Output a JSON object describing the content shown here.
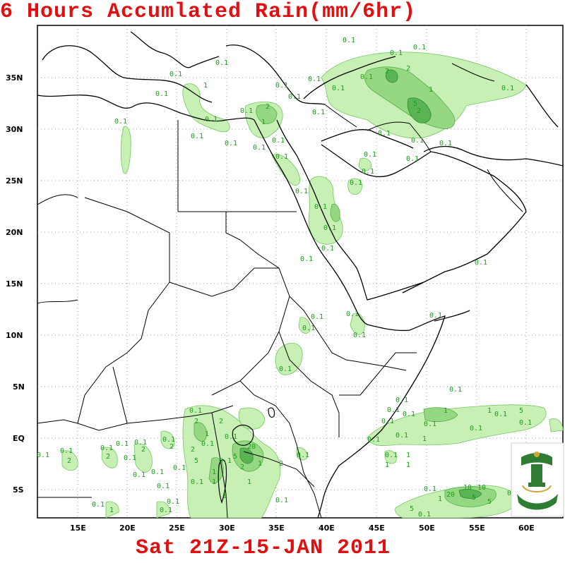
{
  "title": "6 Hours Accumlated Rain(mm/6hr)",
  "valid_time": "Sat 21Z-15-JAN 2011",
  "colors": {
    "title": "#e01010",
    "rain_light": "#c8f0b4",
    "rain_medium": "#96d882",
    "rain_heavy": "#5ab454",
    "contour_label": "#1aa01a",
    "border": "#000000"
  },
  "lat_labels": [
    "35N",
    "30N",
    "25N",
    "20N",
    "15N",
    "10N",
    "5N",
    "EQ",
    "5S"
  ],
  "lon_labels": [
    "15E",
    "20E",
    "25E",
    "30E",
    "35E",
    "40E",
    "45E",
    "50E",
    "55E",
    "60E"
  ],
  "rain_labels": [
    "0.1",
    "1",
    "2",
    "5",
    "10",
    "20"
  ],
  "logo": {
    "icon": "university-emblem-icon"
  }
}
